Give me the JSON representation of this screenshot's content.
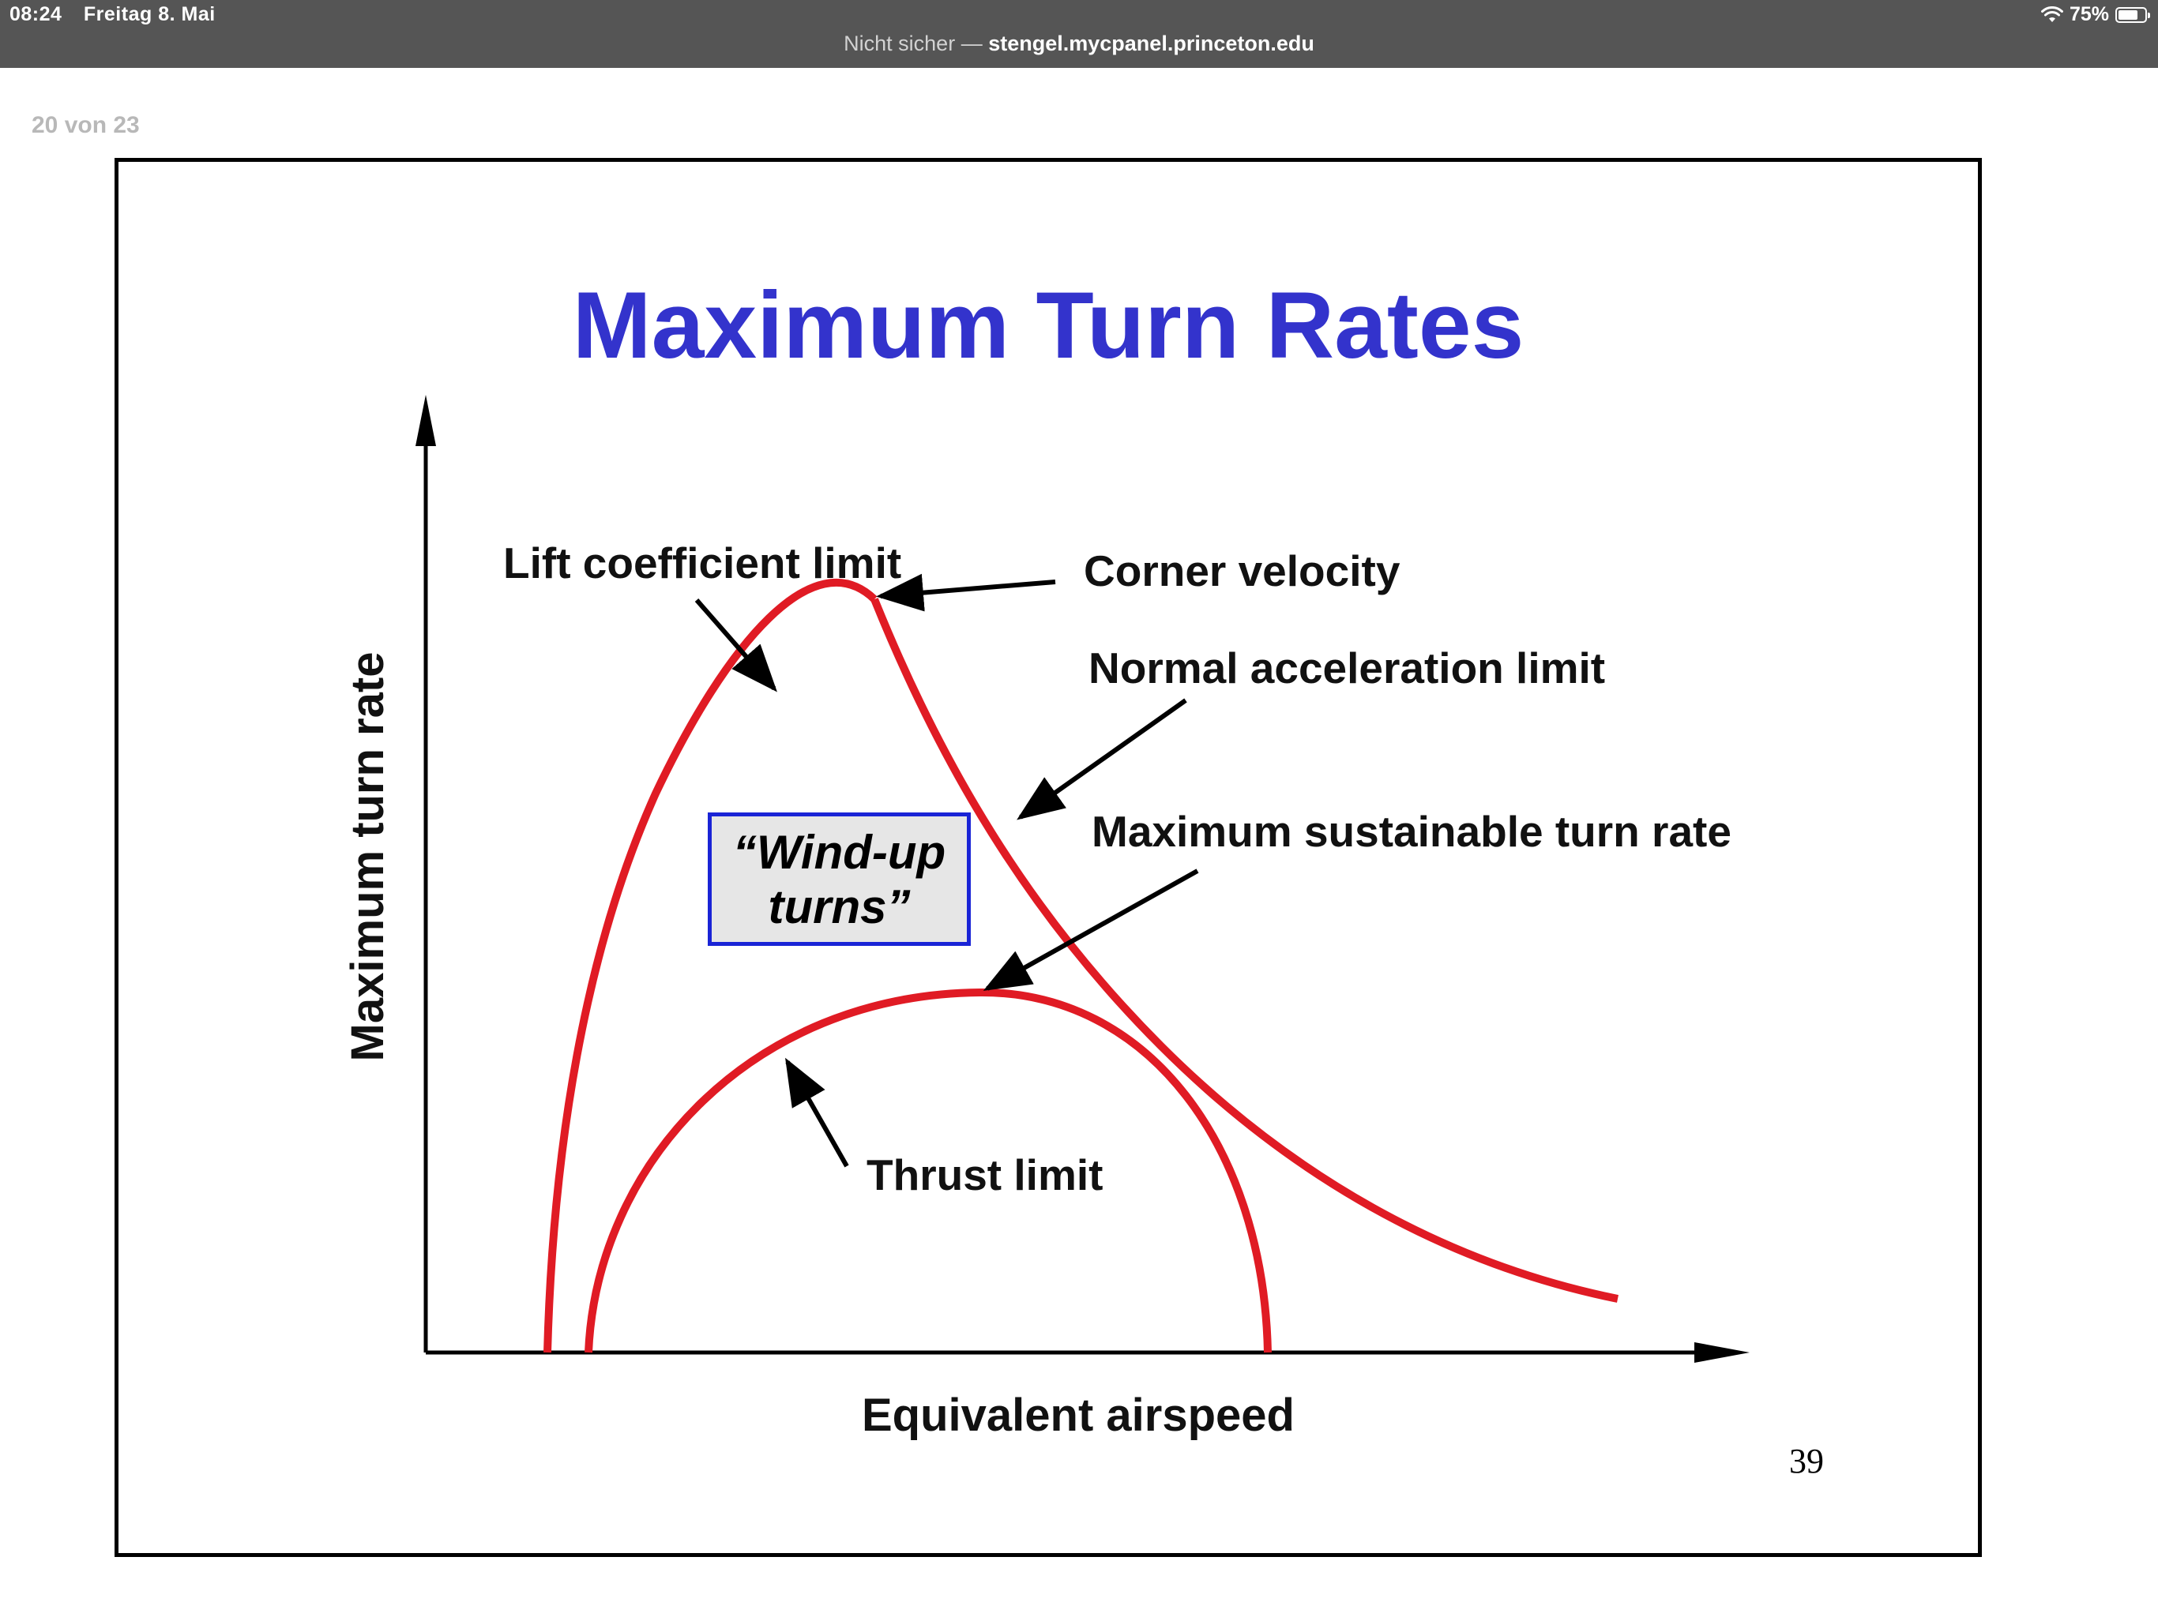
{
  "status_bar": {
    "time": "08:24",
    "date": "Freitag 8. Mai",
    "battery": "75%",
    "battery_level": 0.75,
    "icons": [
      "wifi-icon",
      "battery-icon"
    ]
  },
  "address_bar": {
    "insecure_label": "Nicht sicher",
    "separator": "—",
    "host": "stengel.mycpanel.princeton.edu"
  },
  "viewer": {
    "page_counter": "20 von 23"
  },
  "slide": {
    "title": "Maximum Turn Rates",
    "page_number": "39",
    "x_axis_label": "Equivalent airspeed",
    "y_axis_label": "Maximum turn rate",
    "annotations": {
      "lift_limit": "Lift coefficient limit",
      "corner_velocity": "Corner velocity",
      "normal_accel_limit": "Normal acceleration limit",
      "max_sustainable": "Maximum sustainable turn rate",
      "thrust_limit": "Thrust limit"
    },
    "windup_box": "“Wind-up turns”",
    "colors": {
      "title": "#3333cc",
      "curves": "#e01b24",
      "box_border": "#1a24d6",
      "box_fill": "#e6e6e6"
    }
  }
}
